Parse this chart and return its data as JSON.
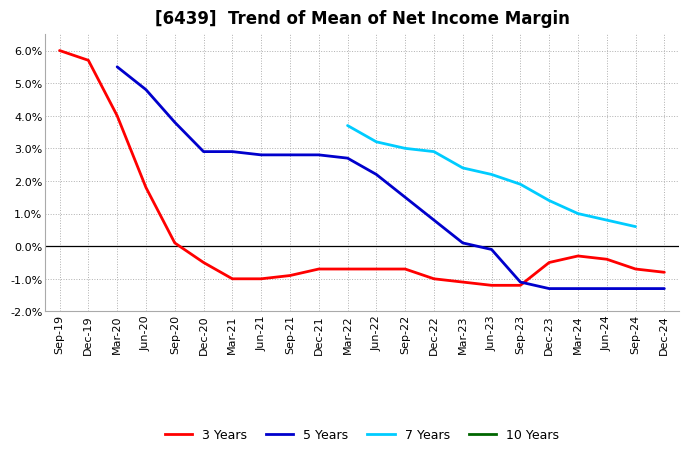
{
  "title": "[6439]  Trend of Mean of Net Income Margin",
  "ylim": [
    -0.02,
    0.065
  ],
  "yticks": [
    -0.02,
    -0.01,
    0.0,
    0.01,
    0.02,
    0.03,
    0.04,
    0.05,
    0.06
  ],
  "background_color": "#ffffff",
  "grid_color": "#b0b0b0",
  "legend": [
    "3 Years",
    "5 Years",
    "7 Years",
    "10 Years"
  ],
  "legend_colors": [
    "#ff0000",
    "#0000cc",
    "#00ccff",
    "#006600"
  ],
  "x_labels": [
    "Sep-19",
    "Dec-19",
    "Mar-20",
    "Jun-20",
    "Sep-20",
    "Dec-20",
    "Mar-21",
    "Jun-21",
    "Sep-21",
    "Dec-21",
    "Mar-22",
    "Jun-22",
    "Sep-22",
    "Dec-22",
    "Mar-23",
    "Jun-23",
    "Sep-23",
    "Dec-23",
    "Mar-24",
    "Jun-24",
    "Sep-24",
    "Dec-24"
  ],
  "series_3y": [
    0.06,
    0.057,
    0.04,
    0.018,
    0.001,
    -0.005,
    -0.01,
    -0.01,
    -0.009,
    -0.007,
    -0.007,
    -0.007,
    -0.007,
    -0.01,
    -0.011,
    -0.012,
    -0.012,
    -0.005,
    -0.003,
    -0.004,
    -0.007,
    -0.008
  ],
  "series_5y": [
    null,
    null,
    0.055,
    0.048,
    0.038,
    0.029,
    0.029,
    0.028,
    0.028,
    0.028,
    0.027,
    0.022,
    0.015,
    0.008,
    0.001,
    -0.001,
    -0.011,
    -0.013,
    -0.013,
    -0.013,
    -0.013,
    -0.013
  ],
  "series_7y": [
    null,
    null,
    null,
    null,
    null,
    null,
    null,
    null,
    null,
    null,
    0.037,
    0.032,
    0.03,
    0.029,
    0.024,
    0.022,
    0.019,
    0.014,
    0.01,
    0.008,
    0.006,
    null
  ],
  "series_10y": [
    null,
    null,
    null,
    null,
    null,
    null,
    null,
    null,
    null,
    null,
    null,
    null,
    null,
    null,
    null,
    null,
    null,
    null,
    null,
    null,
    null,
    null
  ],
  "title_fontsize": 12,
  "tick_fontsize": 8,
  "legend_fontsize": 9
}
